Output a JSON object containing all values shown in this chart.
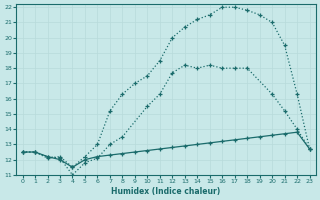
{
  "xlabel": "Humidex (Indice chaleur)",
  "xlim": [
    -0.5,
    23.5
  ],
  "ylim": [
    11,
    22.2
  ],
  "xticks": [
    0,
    1,
    2,
    3,
    4,
    5,
    6,
    7,
    8,
    9,
    10,
    11,
    12,
    13,
    14,
    15,
    16,
    17,
    18,
    19,
    20,
    21,
    22,
    23
  ],
  "yticks": [
    11,
    12,
    13,
    14,
    15,
    16,
    17,
    18,
    19,
    20,
    21,
    22
  ],
  "bg_color": "#c8e8e8",
  "line_color": "#1a6b6b",
  "grid_color": "#b8dada",
  "line1_x": [
    0,
    1,
    2,
    3,
    4,
    5,
    6,
    7,
    8,
    10,
    11,
    12,
    13,
    14,
    15,
    16,
    17,
    18,
    20,
    21,
    22,
    23
  ],
  "line1_y": [
    12.5,
    12.5,
    12.2,
    12.1,
    11.0,
    11.8,
    12.1,
    13.0,
    13.5,
    15.5,
    16.3,
    17.7,
    18.2,
    18.0,
    18.2,
    18.0,
    18.0,
    18.0,
    16.3,
    15.2,
    14.0,
    12.7
  ],
  "line2_x": [
    0,
    1,
    2,
    3,
    4,
    5,
    6,
    7,
    8,
    9,
    10,
    11,
    12,
    13,
    14,
    15,
    16,
    17,
    18,
    19,
    20,
    21,
    22,
    23
  ],
  "line2_y": [
    12.5,
    12.5,
    12.1,
    12.2,
    11.5,
    12.2,
    13.0,
    15.2,
    16.3,
    17.0,
    17.5,
    18.5,
    20.0,
    20.7,
    21.2,
    21.5,
    22.0,
    22.0,
    21.8,
    21.5,
    21.0,
    19.5,
    16.3,
    12.7
  ],
  "line3_x": [
    0,
    1,
    2,
    3,
    4,
    5,
    6,
    7,
    8,
    9,
    10,
    11,
    12,
    13,
    14,
    15,
    16,
    17,
    18,
    19,
    20,
    21,
    22,
    23
  ],
  "line3_y": [
    12.5,
    12.5,
    12.2,
    12.0,
    11.5,
    12.0,
    12.2,
    12.3,
    12.4,
    12.5,
    12.6,
    12.7,
    12.8,
    12.9,
    13.0,
    13.1,
    13.2,
    13.3,
    13.4,
    13.5,
    13.6,
    13.7,
    13.8,
    12.7
  ]
}
